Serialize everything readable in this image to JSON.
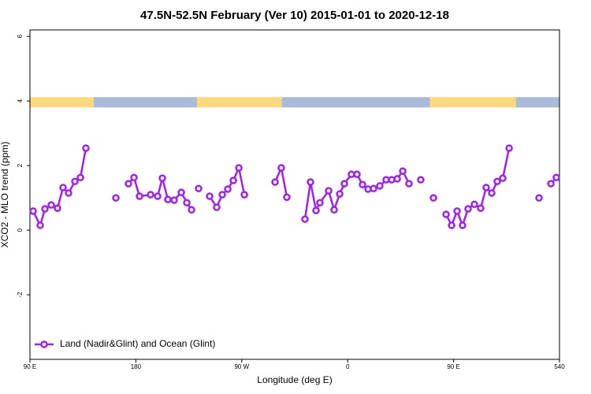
{
  "chart_data": {
    "type": "line",
    "title": "47.5N-52.5N February (Ver 10)   2015-01-01 to 2020-12-18",
    "x_label": "Longitude (deg E)",
    "y_label": "XCO2 - MLO trend (ppm)",
    "xlim": [
      90,
      540
    ],
    "ylim": [
      -4,
      6.2
    ],
    "xticks": [
      {
        "value": 90,
        "label": "90 E"
      },
      180,
      {
        "value": 270,
        "label": "90 W"
      },
      {
        "value": 360,
        "label": "0"
      },
      {
        "value": 450,
        "label": "90 E"
      },
      540
    ],
    "yticks": [
      -2,
      0,
      2,
      4,
      6
    ],
    "legend": "bottom-left",
    "surface_band": {
      "y": [
        3.8,
        4.12
      ],
      "segments": [
        {
          "from": 90,
          "to": 144,
          "color": "#fcd97c"
        },
        {
          "from": 144,
          "to": 232,
          "color": "#a8bbd9"
        },
        {
          "from": 232,
          "to": 304,
          "color": "#fcd97c"
        },
        {
          "from": 304,
          "to": 430,
          "color": "#a8bbd9"
        },
        {
          "from": 430,
          "to": 503,
          "color": "#fcd97c"
        },
        {
          "from": 503,
          "to": 540,
          "color": "#a8bbd9"
        }
      ]
    },
    "series": [
      {
        "name": "Land (Nadir&Glint) and Ocean (Glint)",
        "color": "#a020f0",
        "x": [
          92.7,
          98.7,
          102.7,
          108.1,
          113.4,
          118.1,
          122.8,
          128.2,
          132.9,
          137.5,
          null,
          163.0,
          null,
          173.7,
          178.4,
          183.1,
          192.5,
          198.5,
          202.5,
          207.2,
          212.5,
          218.6,
          223.3,
          227.3,
          null,
          233.3,
          null,
          242.7,
          248.7,
          253.4,
          258.1,
          262.8,
          267.5,
          272.2,
          null,
          298.3,
          303.6,
          308.3,
          null,
          323.7,
          328.4,
          333.1,
          336.4,
          343.8,
          348.5,
          353.2,
          357.2,
          363.2,
          367.9,
          372.6,
          377.3,
          382.0,
          387.3,
          392.7,
          397.4,
          402.1,
          406.8,
          412.1,
          null,
          422.1,
          null,
          432.9,
          null,
          443.6,
          448.3,
          453.0,
          457.6,
          462.3,
          467.7,
          473.0,
          477.7,
          482.4,
          487.1,
          491.8,
          497.2,
          null,
          522.6,
          null,
          532.7,
          537.3
        ],
        "values": [
          0.59,
          0.15,
          0.66,
          0.78,
          0.68,
          1.32,
          1.15,
          1.51,
          1.63,
          2.54,
          null,
          1.0,
          null,
          1.44,
          1.63,
          1.05,
          1.1,
          1.05,
          1.61,
          0.95,
          0.93,
          1.17,
          0.85,
          0.63,
          null,
          1.29,
          null,
          1.05,
          0.71,
          1.1,
          1.27,
          1.54,
          1.93,
          1.1,
          null,
          1.49,
          1.93,
          1.02,
          null,
          0.34,
          1.49,
          0.61,
          0.85,
          1.22,
          0.63,
          1.12,
          1.44,
          1.73,
          1.73,
          1.41,
          1.27,
          1.29,
          1.37,
          1.56,
          1.56,
          1.59,
          1.83,
          1.44,
          null,
          1.56,
          null,
          1.0,
          null,
          0.49,
          0.15,
          0.59,
          0.15,
          0.66,
          0.8,
          0.68,
          1.32,
          1.15,
          1.51,
          1.61,
          2.54,
          null,
          1.0,
          null,
          1.44,
          1.63
        ]
      }
    ]
  }
}
